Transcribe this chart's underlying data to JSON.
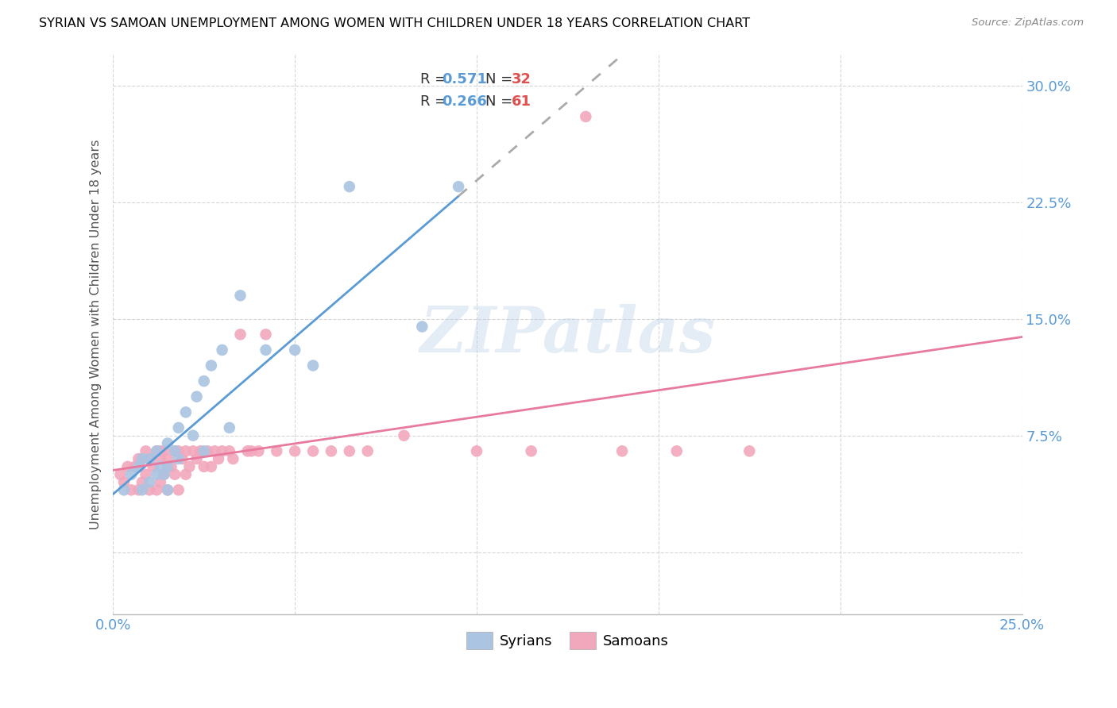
{
  "title": "SYRIAN VS SAMOAN UNEMPLOYMENT AMONG WOMEN WITH CHILDREN UNDER 18 YEARS CORRELATION CHART",
  "source": "Source: ZipAtlas.com",
  "ylabel": "Unemployment Among Women with Children Under 18 years",
  "xlim": [
    0.0,
    0.25
  ],
  "ylim": [
    -0.04,
    0.32
  ],
  "xticks": [
    0.0,
    0.05,
    0.1,
    0.15,
    0.2,
    0.25
  ],
  "yticks": [
    0.0,
    0.075,
    0.15,
    0.225,
    0.3
  ],
  "xticklabels": [
    "0.0%",
    "",
    "",
    "",
    "",
    "25.0%"
  ],
  "yticklabels": [
    "",
    "7.5%",
    "15.0%",
    "22.5%",
    "30.0%"
  ],
  "legend_R_syrian": "0.571",
  "legend_N_syrian": "32",
  "legend_R_samoan": "0.266",
  "legend_N_samoan": "61",
  "color_syrian": "#aac4e2",
  "color_samoan": "#f2a8bc",
  "line_color_syrian": "#5b9bd5",
  "line_color_samoan": "#e87a9f",
  "line_color_syrian_dash": "#aaaaaa",
  "watermark": "ZIPatlas",
  "syrian_x": [
    0.003,
    0.005,
    0.007,
    0.008,
    0.008,
    0.01,
    0.01,
    0.012,
    0.012,
    0.013,
    0.014,
    0.015,
    0.015,
    0.015,
    0.017,
    0.018,
    0.018,
    0.02,
    0.022,
    0.023,
    0.025,
    0.025,
    0.027,
    0.03,
    0.032,
    0.035,
    0.042,
    0.05,
    0.055,
    0.065,
    0.085,
    0.095
  ],
  "syrian_y": [
    0.04,
    0.05,
    0.055,
    0.04,
    0.06,
    0.045,
    0.06,
    0.05,
    0.065,
    0.055,
    0.05,
    0.04,
    0.055,
    0.07,
    0.065,
    0.06,
    0.08,
    0.09,
    0.075,
    0.1,
    0.065,
    0.11,
    0.12,
    0.13,
    0.08,
    0.165,
    0.13,
    0.13,
    0.12,
    0.235,
    0.145,
    0.235
  ],
  "samoan_x": [
    0.002,
    0.003,
    0.004,
    0.005,
    0.006,
    0.007,
    0.007,
    0.008,
    0.008,
    0.009,
    0.009,
    0.01,
    0.01,
    0.011,
    0.012,
    0.012,
    0.013,
    0.013,
    0.013,
    0.014,
    0.014,
    0.015,
    0.015,
    0.016,
    0.017,
    0.017,
    0.018,
    0.018,
    0.019,
    0.02,
    0.02,
    0.021,
    0.022,
    0.023,
    0.024,
    0.025,
    0.026,
    0.027,
    0.028,
    0.029,
    0.03,
    0.032,
    0.033,
    0.035,
    0.037,
    0.038,
    0.04,
    0.042,
    0.045,
    0.05,
    0.055,
    0.06,
    0.065,
    0.07,
    0.08,
    0.1,
    0.115,
    0.13,
    0.14,
    0.155,
    0.175
  ],
  "samoan_y": [
    0.05,
    0.045,
    0.055,
    0.04,
    0.055,
    0.04,
    0.06,
    0.045,
    0.06,
    0.05,
    0.065,
    0.04,
    0.06,
    0.055,
    0.04,
    0.065,
    0.045,
    0.06,
    0.065,
    0.05,
    0.065,
    0.04,
    0.06,
    0.055,
    0.05,
    0.065,
    0.04,
    0.065,
    0.06,
    0.05,
    0.065,
    0.055,
    0.065,
    0.06,
    0.065,
    0.055,
    0.065,
    0.055,
    0.065,
    0.06,
    0.065,
    0.065,
    0.06,
    0.14,
    0.065,
    0.065,
    0.065,
    0.14,
    0.065,
    0.065,
    0.065,
    0.065,
    0.065,
    0.065,
    0.075,
    0.065,
    0.065,
    0.28,
    0.065,
    0.065,
    0.065
  ]
}
